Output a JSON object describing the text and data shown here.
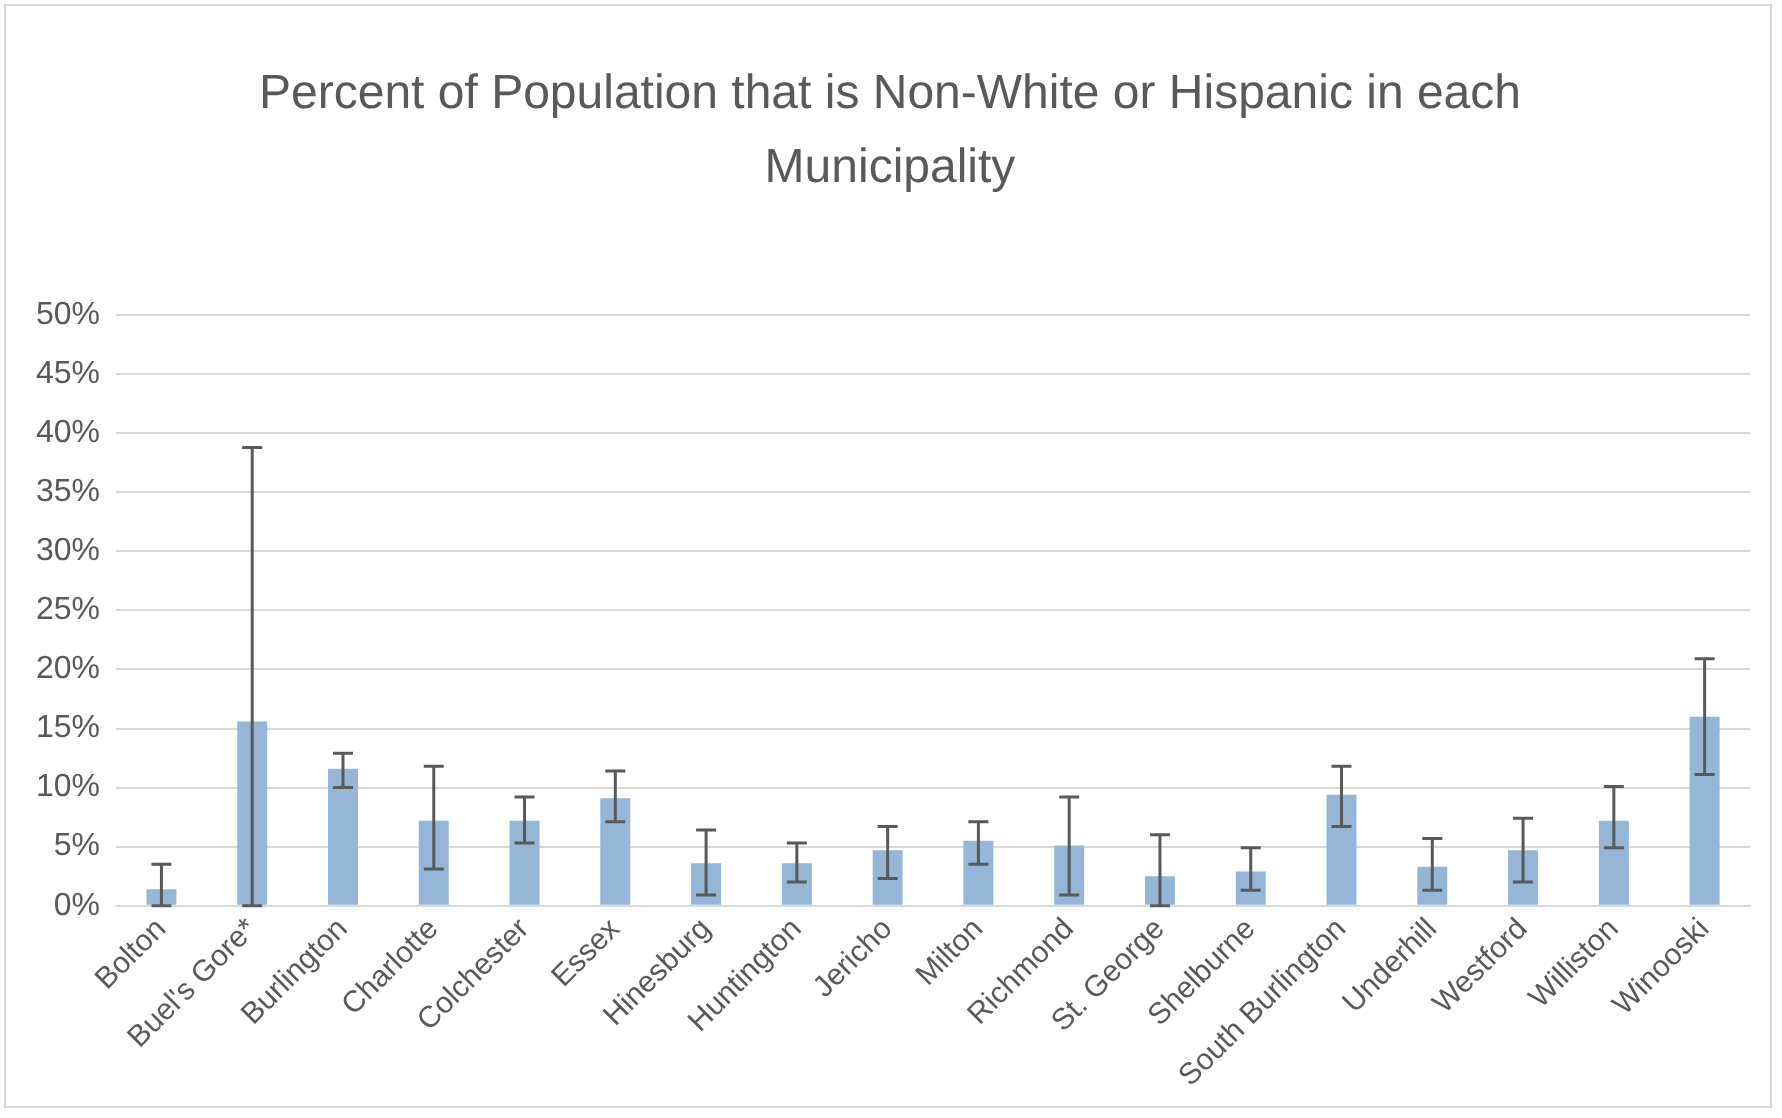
{
  "chart_data": {
    "type": "bar",
    "title": "Percent of Population that is Non-White or Hispanic in each Municipality",
    "categories": [
      "Bolton",
      "Buel's Gore*",
      "Burlington",
      "Charlotte",
      "Colchester",
      "Essex",
      "Hinesburg",
      "Huntington",
      "Jericho",
      "Milton",
      "Richmond",
      "St. George",
      "Shelburne",
      "South Burlington",
      "Underhill",
      "Westford",
      "Williston",
      "Winooski"
    ],
    "values": [
      1.4,
      15.6,
      11.6,
      7.2,
      7.2,
      9.1,
      3.6,
      3.6,
      4.7,
      5.5,
      5.1,
      2.5,
      2.9,
      9.4,
      3.3,
      4.7,
      7.2,
      16.0
    ],
    "errors": [
      [
        0,
        3.5
      ],
      [
        0,
        38.8
      ],
      [
        10.0,
        12.9
      ],
      [
        3.1,
        11.8
      ],
      [
        5.3,
        9.2
      ],
      [
        7.1,
        11.4
      ],
      [
        0.9,
        6.4
      ],
      [
        2.0,
        5.3
      ],
      [
        2.3,
        6.7
      ],
      [
        3.5,
        7.1
      ],
      [
        0.9,
        9.2
      ],
      [
        0,
        6.0
      ],
      [
        1.3,
        4.9
      ],
      [
        6.7,
        11.8
      ],
      [
        1.3,
        5.7
      ],
      [
        2.0,
        7.4
      ],
      [
        4.9,
        10.1
      ],
      [
        11.1,
        20.9
      ]
    ],
    "color": "#95b6d6",
    "ylim": [
      0,
      50
    ],
    "yticks": [
      {
        "value": 0,
        "label": "0%"
      },
      {
        "value": 5,
        "label": "5%"
      },
      {
        "value": 10,
        "label": "10%"
      },
      {
        "value": 15,
        "label": "15%"
      },
      {
        "value": 20,
        "label": "20%"
      },
      {
        "value": 25,
        "label": "25%"
      },
      {
        "value": 30,
        "label": "30%"
      },
      {
        "value": 35,
        "label": "35%"
      },
      {
        "value": 40,
        "label": "40%"
      },
      {
        "value": 45,
        "label": "45%"
      },
      {
        "value": 50,
        "label": "50%"
      }
    ],
    "grid": "y",
    "legend": false
  }
}
